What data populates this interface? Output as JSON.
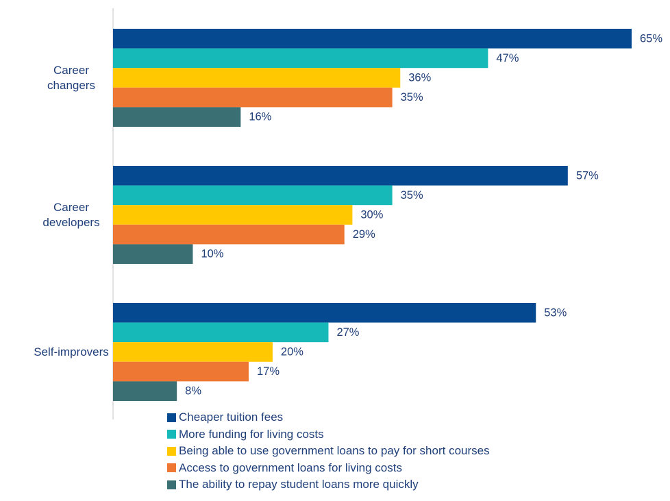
{
  "chart_data": {
    "type": "bar",
    "orientation": "horizontal",
    "title": "",
    "xlabel": "",
    "ylabel": "",
    "xlim": [
      0,
      65
    ],
    "grid": false,
    "legend_position": "bottom",
    "value_suffix": "%",
    "categories": [
      {
        "lines": [
          "Career",
          "changers"
        ]
      },
      {
        "lines": [
          "Career",
          "developers"
        ]
      },
      {
        "lines": [
          "Self-improvers"
        ]
      }
    ],
    "series": [
      {
        "name": "Cheaper tuition fees",
        "color": "#054a91",
        "values": [
          65,
          57,
          53
        ]
      },
      {
        "name": "More funding for living costs",
        "color": "#17b8b8",
        "values": [
          47,
          35,
          27
        ]
      },
      {
        "name": "Being able to use government loans to pay for short courses",
        "color": "#ffc800",
        "values": [
          36,
          30,
          20
        ]
      },
      {
        "name": "Access to government loans for living costs",
        "color": "#ee7734",
        "values": [
          35,
          29,
          17
        ]
      },
      {
        "name": "The ability to repay student loans more quickly",
        "color": "#3a6f73",
        "values": [
          16,
          10,
          8
        ]
      }
    ]
  }
}
